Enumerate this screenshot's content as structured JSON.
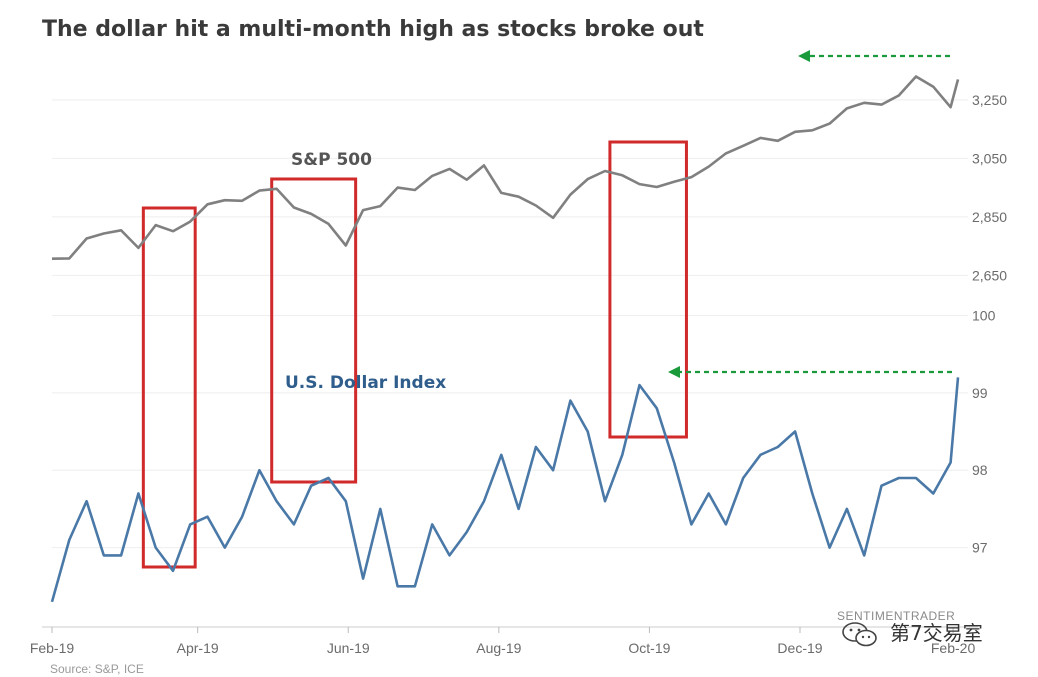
{
  "chart_data": {
    "type": "line",
    "title": "The dollar hit a multi-month high as stocks broke out",
    "x_labels": [
      "Feb-19",
      "Apr-19",
      "Jun-19",
      "Aug-19",
      "Oct-19",
      "Dec-19",
      "Feb-20"
    ],
    "x_range": [
      "2019-02-01",
      "2020-02-03"
    ],
    "x_tick_dates": [
      "2019-02-01",
      "2019-04-01",
      "2019-06-01",
      "2019-08-01",
      "2019-10-01",
      "2019-12-01",
      "2020-02-01"
    ],
    "panels": [
      {
        "name": "S&P 500",
        "color": "#808080",
        "ylim": [
          2600,
          3400
        ],
        "y_ticks": [
          "2,650",
          "2,850",
          "3,050",
          "3,250"
        ],
        "y_tick_values": [
          2650,
          2850,
          3050,
          3250
        ],
        "series": [
          {
            "name": "S&P 500",
            "x": [
              "2019-02-01",
              "2019-02-08",
              "2019-02-15",
              "2019-02-22",
              "2019-03-01",
              "2019-03-08",
              "2019-03-15",
              "2019-03-22",
              "2019-03-29",
              "2019-04-05",
              "2019-04-12",
              "2019-04-19",
              "2019-04-26",
              "2019-05-03",
              "2019-05-10",
              "2019-05-17",
              "2019-05-24",
              "2019-05-31",
              "2019-06-07",
              "2019-06-14",
              "2019-06-21",
              "2019-06-28",
              "2019-07-05",
              "2019-07-12",
              "2019-07-19",
              "2019-07-26",
              "2019-08-02",
              "2019-08-09",
              "2019-08-16",
              "2019-08-23",
              "2019-08-30",
              "2019-09-06",
              "2019-09-13",
              "2019-09-20",
              "2019-09-27",
              "2019-10-04",
              "2019-10-11",
              "2019-10-18",
              "2019-10-25",
              "2019-11-01",
              "2019-11-08",
              "2019-11-15",
              "2019-11-22",
              "2019-11-29",
              "2019-12-06",
              "2019-12-13",
              "2019-12-20",
              "2019-12-27",
              "2020-01-03",
              "2020-01-10",
              "2020-01-17",
              "2020-01-24",
              "2020-01-31",
              "2020-02-03"
            ],
            "values": [
              2707,
              2708,
              2776,
              2793,
              2804,
              2744,
              2822,
              2801,
              2834,
              2893,
              2907,
              2905,
              2940,
              2946,
              2882,
              2860,
              2826,
              2752,
              2873,
              2887,
              2950,
              2942,
              2990,
              3014,
              2977,
              3026,
              2932,
              2919,
              2889,
              2847,
              2926,
              2979,
              3007,
              2992,
              2962,
              2952,
              2970,
              2986,
              3022,
              3067,
              3093,
              3120,
              3110,
              3141,
              3146,
              3169,
              3221,
              3240,
              3234,
              3265,
              3330,
              3295,
              3225,
              3320
            ]
          }
        ]
      },
      {
        "name": "U.S. Dollar Index",
        "color": "#4a79a8",
        "ylim": [
          96.0,
          100.2
        ],
        "y_ticks": [
          "97",
          "98",
          "99",
          "100"
        ],
        "y_tick_values": [
          97,
          98,
          99,
          100
        ],
        "series": [
          {
            "name": "U.S. Dollar Index",
            "x": [
              "2019-02-01",
              "2019-02-08",
              "2019-02-15",
              "2019-02-22",
              "2019-03-01",
              "2019-03-08",
              "2019-03-15",
              "2019-03-22",
              "2019-03-29",
              "2019-04-05",
              "2019-04-12",
              "2019-04-19",
              "2019-04-26",
              "2019-05-03",
              "2019-05-10",
              "2019-05-17",
              "2019-05-24",
              "2019-05-31",
              "2019-06-07",
              "2019-06-14",
              "2019-06-21",
              "2019-06-28",
              "2019-07-05",
              "2019-07-12",
              "2019-07-19",
              "2019-07-26",
              "2019-08-02",
              "2019-08-09",
              "2019-08-16",
              "2019-08-23",
              "2019-08-30",
              "2019-09-06",
              "2019-09-13",
              "2019-09-20",
              "2019-09-27",
              "2019-10-04",
              "2019-10-11",
              "2019-10-18",
              "2019-10-25",
              "2019-11-01",
              "2019-11-08",
              "2019-11-15",
              "2019-11-22",
              "2019-11-29",
              "2019-12-06",
              "2019-12-13",
              "2019-12-20",
              "2019-12-27",
              "2020-01-03",
              "2020-01-10",
              "2020-01-17",
              "2020-01-24",
              "2020-01-31",
              "2020-02-03"
            ],
            "values": [
              96.3,
              97.1,
              97.6,
              96.9,
              96.9,
              97.7,
              97.0,
              96.7,
              97.3,
              97.4,
              97.0,
              97.4,
              98.0,
              97.6,
              97.3,
              97.8,
              97.9,
              97.6,
              96.6,
              97.5,
              96.5,
              96.5,
              97.3,
              96.9,
              97.2,
              97.6,
              98.2,
              97.5,
              98.3,
              98.0,
              98.9,
              98.5,
              97.6,
              98.2,
              99.1,
              98.8,
              98.1,
              97.3,
              97.7,
              97.3,
              97.9,
              98.2,
              98.3,
              98.5,
              97.7,
              97.0,
              97.5,
              96.9,
              97.8,
              97.9,
              97.9,
              97.7,
              98.1,
              99.2
            ]
          }
        ]
      }
    ],
    "annotations": [
      {
        "type": "box",
        "label": "",
        "from": "2019-03-10",
        "to": "2019-03-31"
      },
      {
        "type": "box",
        "label": "",
        "from": "2019-05-01",
        "to": "2019-06-04"
      },
      {
        "type": "box",
        "label": "",
        "from": "2019-09-15",
        "to": "2019-10-16"
      },
      {
        "type": "arrow",
        "label": "",
        "panel": "S&P 500",
        "direction": "left"
      },
      {
        "type": "arrow",
        "label": "",
        "panel": "U.S. Dollar Index",
        "direction": "left"
      }
    ],
    "grid": true,
    "legend": "none",
    "colors": {
      "box": "#d02a2a",
      "arrow": "#1a9a3a",
      "grid": "#eeeeee"
    }
  },
  "source": "Source: S&P, ICE",
  "watermark": "SENTIMENTRADER",
  "wechat_label": "第7交易室"
}
